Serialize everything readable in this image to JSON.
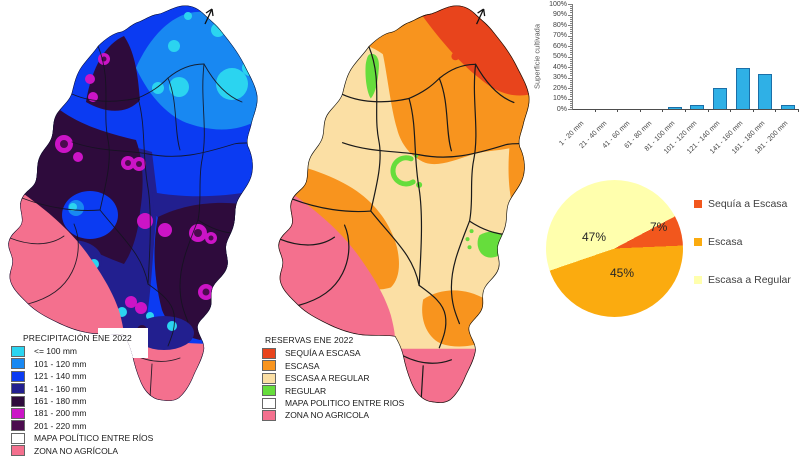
{
  "left_map": {
    "title": "PRECIPITACIÓN ENE 2022",
    "north_arrow": "north-arrow",
    "legend": [
      {
        "label": "<= 100 mm",
        "color": "#2BD4F0"
      },
      {
        "label": "101 - 120 mm",
        "color": "#1888F2"
      },
      {
        "label": "121 - 140 mm",
        "color": "#0B3BF2"
      },
      {
        "label": "141 - 160 mm",
        "color": "#221F8F"
      },
      {
        "label": "161 - 180 mm",
        "color": "#2E0B3C"
      },
      {
        "label": "181 - 200 mm",
        "color": "#CB14C6"
      },
      {
        "label": "201 - 220 mm",
        "color": "#4B0B4E"
      },
      {
        "label": "MAPA POLÍTICO ENTRE RÍOS",
        "color": "#FFFFFF"
      },
      {
        "label": "ZONA NO AGRÍCOLA",
        "color": "#F4708E"
      }
    ]
  },
  "middle_map": {
    "title": "RESERVAS ENE 2022",
    "north_arrow": "north-arrow",
    "legend": [
      {
        "label": "SEQUÍA A ESCASA",
        "color": "#E8441C"
      },
      {
        "label": "ESCASA",
        "color": "#F8941E"
      },
      {
        "label": "ESCASA A REGULAR",
        "color": "#FBDFA4"
      },
      {
        "label": "REGULAR",
        "color": "#66DD3C"
      },
      {
        "label": "MAPA POLITICO ENTRE RIOS",
        "color": "#FFFFFF"
      },
      {
        "label": "ZONA NO AGRICOLA",
        "color": "#F4708E"
      }
    ]
  },
  "chart_data": [
    {
      "type": "bar",
      "title": "",
      "xlabel": "",
      "ylabel": "Superficie cultivada",
      "categories": [
        "1 - 20 mm",
        "21 - 40 mm",
        "41 - 60 mm",
        "61 - 80 mm",
        "81 - 100 mm",
        "101 - 120 mm",
        "121 - 140 mm",
        "141 - 160 mm",
        "161 - 180 mm",
        "181 - 200 mm"
      ],
      "values": [
        0,
        0,
        0,
        0,
        1.5,
        3.5,
        20,
        39,
        33,
        4
      ],
      "ylim": [
        0,
        100
      ],
      "ytick_step": 10,
      "ytick_suffix": "%",
      "grid": false,
      "bar_color": "#2FB0E6",
      "bar_border": "#1B6FA8",
      "legend_position": "none"
    },
    {
      "type": "pie",
      "title": "",
      "start_angle_deg": 62,
      "legend_position": "right",
      "slices": [
        {
          "label": "Sequía a Escasa",
          "value": 7,
          "data_label": "7%",
          "color": "#F2571D"
        },
        {
          "label": "Escasa",
          "value": 45,
          "data_label": "45%",
          "color": "#FBAB0F"
        },
        {
          "label": "Escasa a Regular",
          "value": 47,
          "data_label": "47%",
          "color": "#FFFFAD"
        }
      ]
    }
  ]
}
